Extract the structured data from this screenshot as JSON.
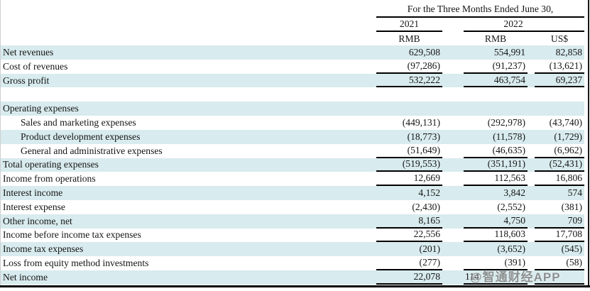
{
  "header": {
    "period": "For the Three Months Ended June 30,",
    "year_2021": "2021",
    "year_2022": "2022",
    "currency_2021_rmb": "RMB",
    "currency_2022_rmb": "RMB",
    "currency_2022_usd": "US$"
  },
  "rows": [
    {
      "label": "Net revenues",
      "v2021": "629,508",
      "v2022_rmb": "554,991",
      "v2022_usd": "82,858"
    },
    {
      "label": "Cost of revenues",
      "v2021": "(97,286)",
      "v2022_rmb": "(91,237)",
      "v2022_usd": "(13,621)",
      "underline": true
    },
    {
      "label": "Gross profit",
      "v2021": "532,222",
      "v2022_rmb": "463,754",
      "v2022_usd": "69,237",
      "underline": true
    },
    {
      "label": "",
      "blank": true
    },
    {
      "label": "Operating expenses"
    },
    {
      "label": "Sales and marketing expenses",
      "indent": true,
      "v2021": "(449,131)",
      "v2022_rmb": "(292,978)",
      "v2022_usd": "(43,740)"
    },
    {
      "label": "Product development expenses",
      "indent": true,
      "v2021": "(18,773)",
      "v2022_rmb": "(11,578)",
      "v2022_usd": "(1,729)"
    },
    {
      "label": "General and administrative expenses",
      "indent": true,
      "v2021": "(51,649)",
      "v2022_rmb": "(46,635)",
      "v2022_usd": "(6,962)",
      "underline": true
    },
    {
      "label": "Total operating expenses",
      "v2021": "(519,553)",
      "v2022_rmb": "(351,191)",
      "v2022_usd": "(52,431)",
      "underline": true
    },
    {
      "label": "Income from operations",
      "v2021": "12,669",
      "v2022_rmb": "112,563",
      "v2022_usd": "16,806",
      "underline": true
    },
    {
      "label": "Interest income",
      "v2021": "4,152",
      "v2022_rmb": "3,842",
      "v2022_usd": "574"
    },
    {
      "label": "Interest expense",
      "v2021": "(2,430)",
      "v2022_rmb": "(2,552)",
      "v2022_usd": "(381)"
    },
    {
      "label": "Other income, net",
      "v2021": "8,165",
      "v2022_rmb": "4,750",
      "v2022_usd": "709",
      "underline": true
    },
    {
      "label": "Income before income tax expenses",
      "v2021": "22,556",
      "v2022_rmb": "118,603",
      "v2022_usd": "17,708",
      "underline": true
    },
    {
      "label": "Income tax expenses",
      "v2021": "(201)",
      "v2022_rmb": "(3,652)",
      "v2022_usd": "(545)"
    },
    {
      "label": "Loss from equity method investments",
      "v2021": "(277)",
      "v2022_rmb": "(391)",
      "v2022_usd": "(58)",
      "underline": true
    },
    {
      "label": "Net income",
      "v2021": "22,078",
      "v2022_rmb": "114",
      "v2022_usd": "",
      "underline": true,
      "obscured": true
    }
  ],
  "watermark": {
    "text": "@智通财经APP"
  },
  "colors": {
    "row_highlight": "#d8ebee",
    "rule": "#000000",
    "watermark_gray": "#7d7d7d"
  }
}
